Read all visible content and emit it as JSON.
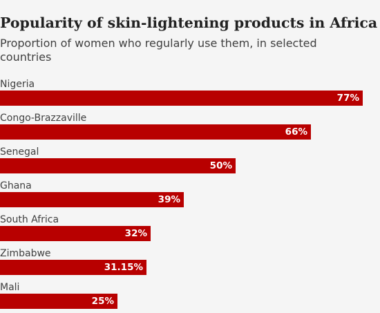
{
  "chart_data": {
    "type": "bar",
    "orientation": "horizontal",
    "title": "Popularity of skin-lightening products in Africa",
    "subtitle": "Proportion of women who regularly use them, in selected countries",
    "categories": [
      "Nigeria",
      "Congo-Brazzaville",
      "Senegal",
      "Ghana",
      "South Africa",
      "Zimbabwe",
      "Mali"
    ],
    "values": [
      77,
      66,
      50,
      39,
      32,
      31.15,
      25
    ],
    "value_labels": [
      "77%",
      "66%",
      "50%",
      "39%",
      "32%",
      "31.15%",
      "25%"
    ],
    "xlim": [
      0,
      80
    ],
    "bar_color": "#b80000",
    "grid": false,
    "legend": "none"
  }
}
